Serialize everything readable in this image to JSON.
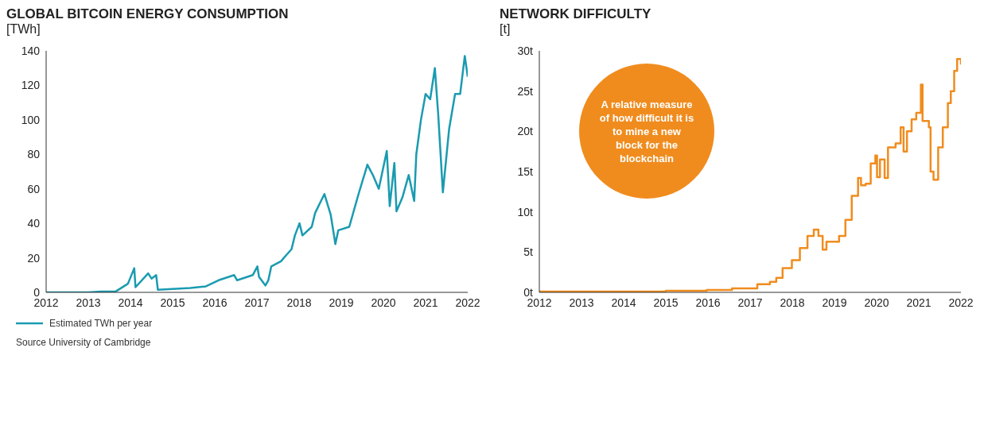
{
  "chart_data": [
    {
      "type": "line",
      "title": "GLOBAL BITCOIN ENERGY CONSUMPTION",
      "ylabel": "[TWh]",
      "xlim": [
        2012,
        2022
      ],
      "xticks": [
        2012,
        2013,
        2014,
        2015,
        2016,
        2017,
        2018,
        2019,
        2020,
        2021,
        2022
      ],
      "ylim": [
        0,
        140
      ],
      "yticks": [
        0,
        20,
        40,
        60,
        80,
        100,
        120,
        140
      ],
      "legend": "bottom",
      "marker": "none",
      "line_style": "solid",
      "annotations": [
        "Source University of Cambridge"
      ],
      "series": [
        {
          "name": "Estimated TWh per year",
          "color": "#1a9bb0",
          "x": [
            2012,
            2013,
            2013.3,
            2013.65,
            2013.94,
            2014.09,
            2014.12,
            2014.42,
            2014.5,
            2014.61,
            2014.65,
            2015.42,
            2015.79,
            2016.09,
            2016.46,
            2016.53,
            2016.9,
            2017.01,
            2017.05,
            2017.2,
            2017.27,
            2017.34,
            2017.57,
            2017.71,
            2017.82,
            2017.9,
            2018.01,
            2018.08,
            2018.3,
            2018.38,
            2018.6,
            2018.75,
            2018.86,
            2018.93,
            2019.19,
            2019.41,
            2019.62,
            2019.75,
            2019.89,
            2020.08,
            2020.15,
            2020.26,
            2020.31,
            2020.45,
            2020.6,
            2020.73,
            2020.78,
            2020.89,
            2021.0,
            2021.11,
            2021.22,
            2021.3,
            2021.41,
            2021.56,
            2021.7,
            2021.82,
            2021.93,
            2022.0
          ],
          "values": [
            0,
            0,
            0.5,
            0.5,
            5,
            14,
            3,
            11,
            8,
            10,
            1.5,
            2.5,
            3.5,
            7,
            10,
            7,
            10,
            15,
            9,
            4,
            7,
            15,
            18,
            22,
            25,
            33,
            40,
            33,
            38,
            46,
            57,
            45,
            28,
            36,
            38,
            57,
            74,
            68,
            60,
            82,
            50,
            75,
            47,
            55,
            68,
            53,
            80,
            100,
            115,
            112,
            130,
            103,
            58,
            95,
            115,
            115,
            137,
            125
          ]
        }
      ]
    },
    {
      "type": "step",
      "title": "NETWORK DIFFICULTY",
      "ylabel": "[t]",
      "xlim": [
        2012,
        2022
      ],
      "xticks": [
        2012,
        2013,
        2014,
        2015,
        2016,
        2017,
        2018,
        2019,
        2020,
        2021,
        2022
      ],
      "ylim": [
        0,
        30
      ],
      "yticks": [
        {
          "value": 0,
          "label": "0t"
        },
        {
          "value": 5,
          "label": "5t"
        },
        {
          "value": 10,
          "label": "10t"
        },
        {
          "value": 15,
          "label": "15t"
        },
        {
          "value": 20,
          "label": "20t"
        },
        {
          "value": 25,
          "label": "25t"
        },
        {
          "value": 30,
          "label": "30t"
        }
      ],
      "marker": "none",
      "line_style": "solid",
      "annotations": [
        "A relative measure of how difficult it is to mine a new block for the blockchain"
      ],
      "series": [
        {
          "color": "#f08c1e",
          "x": [
            2012,
            2015.0,
            2015.97,
            2016.57,
            2017.17,
            2017.47,
            2017.62,
            2017.77,
            2017.99,
            2018.18,
            2018.36,
            2018.51,
            2018.62,
            2018.72,
            2018.81,
            2019.11,
            2019.26,
            2019.41,
            2019.56,
            2019.63,
            2019.74,
            2019.86,
            2019.97,
            2020.01,
            2020.08,
            2020.19,
            2020.27,
            2020.45,
            2020.57,
            2020.64,
            2020.72,
            2020.83,
            2020.94,
            2021.05,
            2021.09,
            2021.24,
            2021.28,
            2021.35,
            2021.46,
            2021.57,
            2021.69,
            2021.76,
            2021.84,
            2021.91,
            2022.0
          ],
          "values": [
            0.1,
            0.2,
            0.3,
            0.5,
            1,
            1.3,
            1.8,
            3,
            4,
            5.5,
            7,
            7.8,
            7,
            5.3,
            6.3,
            7,
            9,
            12,
            14.2,
            13.3,
            13.5,
            16,
            17,
            14.3,
            16.5,
            14.2,
            18,
            18.5,
            20.5,
            17.5,
            20,
            21.5,
            22.3,
            25.8,
            21.3,
            20.5,
            15,
            14,
            18,
            20.5,
            23.5,
            25,
            27.5,
            29,
            28.3
          ]
        }
      ]
    }
  ]
}
